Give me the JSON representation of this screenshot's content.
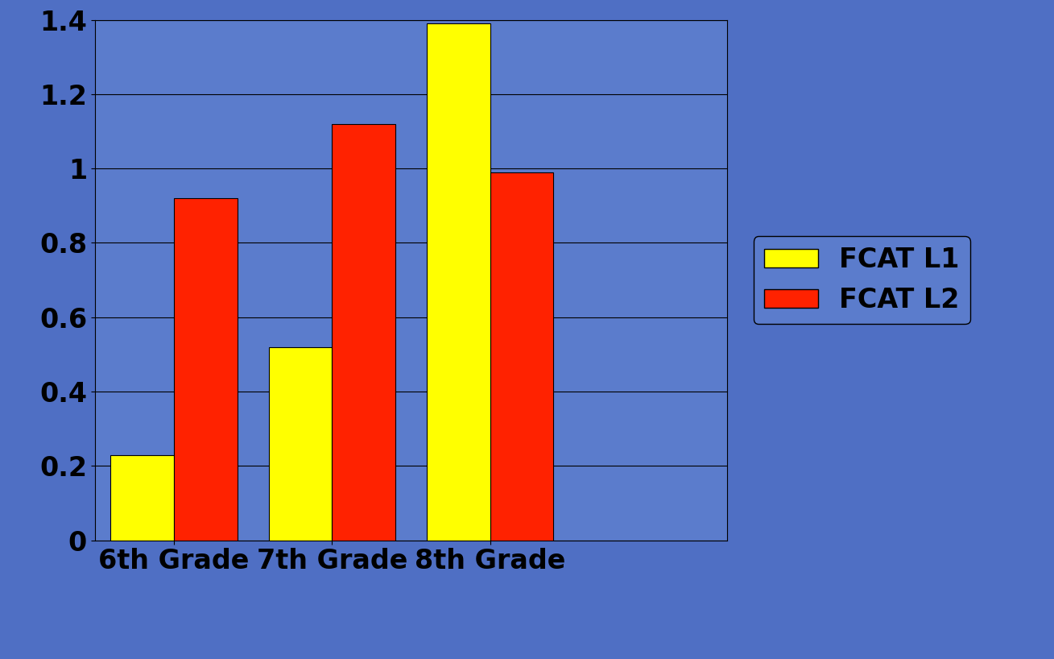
{
  "chart_data": {
    "type": "bar",
    "categories": [
      "6th Grade",
      "7th Grade",
      "8th Grade"
    ],
    "series": [
      {
        "name": "FCAT L1",
        "color": "#ffff00",
        "values": [
          0.23,
          0.52,
          1.39
        ]
      },
      {
        "name": "FCAT L2",
        "color": "#ff2200",
        "values": [
          0.92,
          1.12,
          0.99
        ]
      }
    ],
    "ylim": [
      0,
      1.4
    ],
    "yticks": [
      0,
      0.2,
      0.4,
      0.6,
      0.8,
      1,
      1.2,
      1.4
    ],
    "grid": true,
    "legend": "right"
  }
}
